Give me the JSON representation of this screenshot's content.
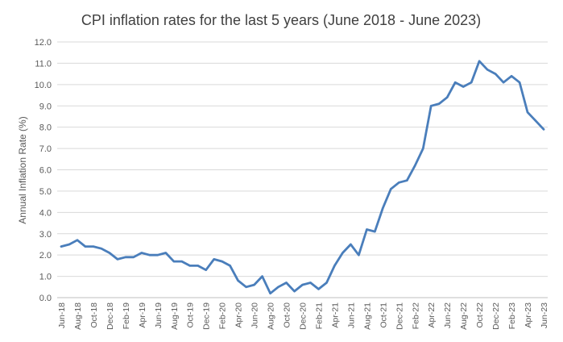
{
  "chart_data": {
    "type": "line",
    "title": "CPI inflation rates for the last 5 years (June 2018 - June 2023)",
    "xlabel": "",
    "ylabel": "Annual Inflation Rate (%)",
    "ylim": [
      0,
      12
    ],
    "yticks": [
      "0.0",
      "1.0",
      "2.0",
      "3.0",
      "4.0",
      "5.0",
      "6.0",
      "7.0",
      "8.0",
      "9.0",
      "10.0",
      "11.0",
      "12.0"
    ],
    "grid": true,
    "legend": "none",
    "line_color": "#4a7ebb",
    "x": [
      "Jun-18",
      "Jul-18",
      "Aug-18",
      "Sep-18",
      "Oct-18",
      "Nov-18",
      "Dec-18",
      "Jan-19",
      "Feb-19",
      "Mar-19",
      "Apr-19",
      "May-19",
      "Jun-19",
      "Jul-19",
      "Aug-19",
      "Sep-19",
      "Oct-19",
      "Nov-19",
      "Dec-19",
      "Jan-20",
      "Feb-20",
      "Mar-20",
      "Apr-20",
      "May-20",
      "Jun-20",
      "Jul-20",
      "Aug-20",
      "Sep-20",
      "Oct-20",
      "Nov-20",
      "Dec-20",
      "Jan-21",
      "Feb-21",
      "Mar-21",
      "Apr-21",
      "May-21",
      "Jun-21",
      "Jul-21",
      "Aug-21",
      "Sep-21",
      "Oct-21",
      "Nov-21",
      "Dec-21",
      "Jan-22",
      "Feb-22",
      "Mar-22",
      "Apr-22",
      "May-22",
      "Jun-22",
      "Jul-22",
      "Aug-22",
      "Sep-22",
      "Oct-22",
      "Nov-22",
      "Dec-22",
      "Jan-23",
      "Feb-23",
      "Mar-23",
      "Apr-23",
      "May-23",
      "Jun-23"
    ],
    "xtick_labels": [
      "Jun-18",
      "Aug-18",
      "Oct-18",
      "Dec-18",
      "Feb-19",
      "Apr-19",
      "Jun-19",
      "Aug-19",
      "Oct-19",
      "Dec-19",
      "Feb-20",
      "Apr-20",
      "Jun-20",
      "Aug-20",
      "Oct-20",
      "Dec-20",
      "Feb-21",
      "Apr-21",
      "Jun-21",
      "Aug-21",
      "Oct-21",
      "Dec-21",
      "Feb-22",
      "Apr-22",
      "Jun-22",
      "Aug-22",
      "Oct-22",
      "Dec-22",
      "Feb-23",
      "Apr-23",
      "Jun-23"
    ],
    "values": [
      2.4,
      2.5,
      2.7,
      2.4,
      2.4,
      2.3,
      2.1,
      1.8,
      1.9,
      1.9,
      2.1,
      2.0,
      2.0,
      2.1,
      1.7,
      1.7,
      1.5,
      1.5,
      1.3,
      1.8,
      1.7,
      1.5,
      0.8,
      0.5,
      0.6,
      1.0,
      0.2,
      0.5,
      0.7,
      0.3,
      0.6,
      0.7,
      0.4,
      0.7,
      1.5,
      2.1,
      2.5,
      2.0,
      3.2,
      3.1,
      4.2,
      5.1,
      5.4,
      5.5,
      6.2,
      7.0,
      9.0,
      9.1,
      9.4,
      10.1,
      9.9,
      10.1,
      11.1,
      10.7,
      10.5,
      10.1,
      10.4,
      10.1,
      8.7,
      8.3,
      7.9
    ]
  }
}
